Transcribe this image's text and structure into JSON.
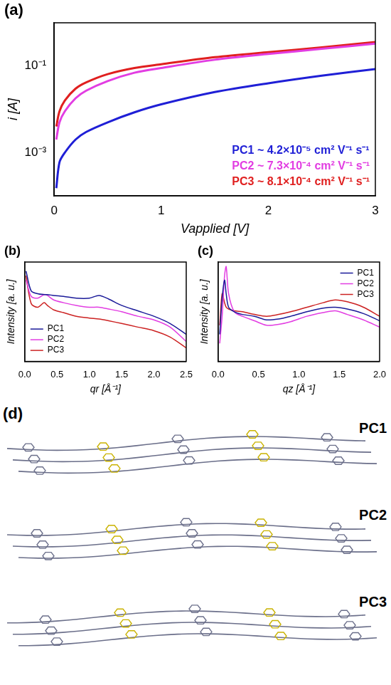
{
  "chart_data": [
    {
      "type": "line",
      "title": "(a)",
      "x_label": "Vapplied [V]",
      "y_label": "i [A]",
      "x": [
        0.02,
        0.05,
        0.1,
        0.2,
        0.3,
        0.5,
        0.75,
        1,
        1.5,
        2,
        2.5,
        3
      ],
      "series": [
        {
          "name": "PC1 ~ 4.2×10⁻⁵ cm² V⁻¹ s⁻¹",
          "color": "#1f1fd6",
          "values": [
            0.00015,
            0.0006,
            0.001,
            0.002,
            0.003,
            0.005,
            0.0085,
            0.013,
            0.025,
            0.04,
            0.06,
            0.085
          ]
        },
        {
          "name": "PC2 ~ 7.3×10⁻⁴ cm² V⁻¹ s⁻¹",
          "color": "#e23de2",
          "values": [
            0.002,
            0.005,
            0.009,
            0.018,
            0.027,
            0.045,
            0.07,
            0.09,
            0.14,
            0.19,
            0.25,
            0.33
          ]
        },
        {
          "name": "PC3 ~ 8.1×10⁻⁴ cm² V⁻¹ s⁻¹",
          "color": "#e01f1f",
          "values": [
            0.004,
            0.009,
            0.016,
            0.03,
            0.042,
            0.065,
            0.09,
            0.11,
            0.16,
            0.21,
            0.27,
            0.36
          ]
        }
      ],
      "xlim": [
        0,
        3
      ],
      "xticks": [
        0,
        1,
        2,
        3
      ],
      "ylim": [
        0.0001,
        1
      ],
      "yticks": [
        {
          "value": 0.001,
          "label": "10⁻³"
        },
        {
          "value": 0.1,
          "label": "10⁻¹"
        }
      ],
      "log": "y",
      "grid": false,
      "legend": "lower right"
    },
    {
      "type": "line",
      "title": "(b)",
      "x_label": "qr [Å⁻¹]",
      "y_label": "Intensity [a. u.]",
      "x": [
        0.02,
        0.1,
        0.2,
        0.3,
        0.35,
        0.45,
        0.6,
        0.8,
        1.0,
        1.15,
        1.3,
        1.5,
        1.75,
        2.0,
        2.25,
        2.5
      ],
      "series": [
        {
          "name": "PC1",
          "color": "#1a1a99",
          "values": [
            1.0,
            0.78,
            0.75,
            0.74,
            0.74,
            0.73,
            0.72,
            0.7,
            0.7,
            0.73,
            0.69,
            0.62,
            0.56,
            0.5,
            0.42,
            0.3
          ]
        },
        {
          "name": "PC2",
          "color": "#e23de2",
          "values": [
            0.9,
            0.72,
            0.7,
            0.74,
            0.73,
            0.68,
            0.65,
            0.62,
            0.6,
            0.6,
            0.58,
            0.55,
            0.5,
            0.46,
            0.38,
            0.22
          ]
        },
        {
          "name": "PC3",
          "color": "#cc2222",
          "values": [
            0.95,
            0.64,
            0.6,
            0.65,
            0.62,
            0.57,
            0.54,
            0.5,
            0.48,
            0.47,
            0.45,
            0.42,
            0.38,
            0.34,
            0.27,
            0.15
          ]
        }
      ],
      "xlim": [
        0,
        2.5
      ],
      "xticks": [
        {
          "value": 0,
          "label": "0.0"
        },
        0.5,
        {
          "value": 1,
          "label": "1.0"
        },
        1.5,
        {
          "value": 2,
          "label": "2.0"
        },
        2.5
      ],
      "ylim": [
        0,
        1.1
      ],
      "yticks": [],
      "tick_labels": "x",
      "grid": false,
      "legend": "lower left"
    },
    {
      "type": "line",
      "title": "(c)",
      "x_label": "qz [Å⁻¹]",
      "y_label": "Intensity [a. u.]",
      "x": [
        0.02,
        0.05,
        0.08,
        0.1,
        0.13,
        0.2,
        0.3,
        0.45,
        0.6,
        0.75,
        0.9,
        1.1,
        1.3,
        1.45,
        1.6,
        1.8,
        2.0
      ],
      "series": [
        {
          "name": "PC1",
          "color": "#1a1a99",
          "values": [
            0.3,
            0.7,
            0.9,
            0.75,
            0.6,
            0.55,
            0.52,
            0.5,
            0.46,
            0.47,
            0.5,
            0.55,
            0.59,
            0.6,
            0.58,
            0.53,
            0.45
          ]
        },
        {
          "name": "PC2",
          "color": "#e23de2",
          "values": [
            0.2,
            0.5,
            0.95,
            1.05,
            0.75,
            0.55,
            0.5,
            0.45,
            0.4,
            0.41,
            0.44,
            0.5,
            0.54,
            0.56,
            0.52,
            0.46,
            0.38
          ]
        },
        {
          "name": "PC3",
          "color": "#cc2222",
          "values": [
            0.4,
            0.75,
            0.65,
            0.6,
            0.58,
            0.56,
            0.55,
            0.52,
            0.5,
            0.52,
            0.55,
            0.6,
            0.65,
            0.68,
            0.66,
            0.6,
            0.5
          ]
        }
      ],
      "xlim": [
        0,
        2
      ],
      "xticks": [
        {
          "value": 0,
          "label": "0.0"
        },
        0.5,
        {
          "value": 1,
          "label": "1.0"
        },
        1.5,
        {
          "value": 2,
          "label": "2.0"
        }
      ],
      "ylim": [
        0,
        1.1
      ],
      "yticks": [],
      "tick_labels": "x",
      "grid": false,
      "legend": "upper right"
    }
  ],
  "diagram": {
    "title": "(d)",
    "labels": [
      "PC1",
      "PC2",
      "PC3"
    ]
  }
}
